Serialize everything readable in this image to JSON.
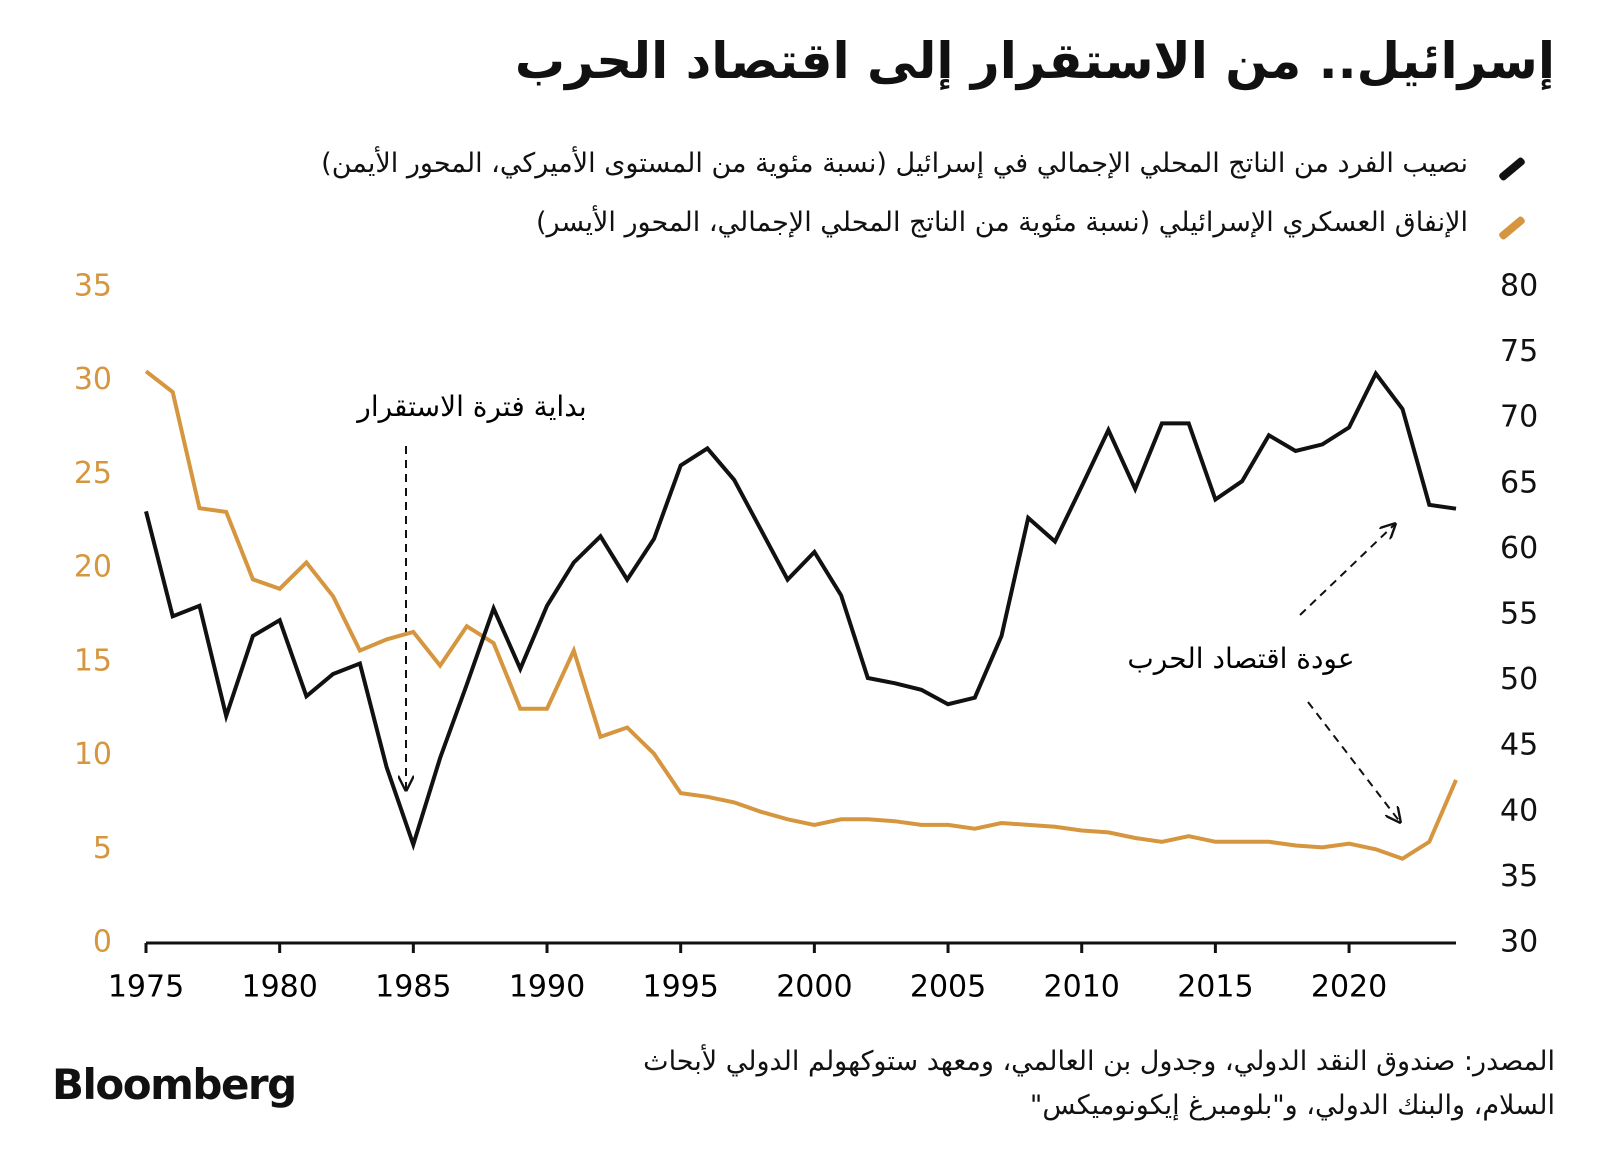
{
  "chart_data": {
    "type": "line",
    "title": "إسرائيل.. من الاستقرار إلى اقتصاد الحرب",
    "x": [
      1975,
      1976,
      1977,
      1978,
      1979,
      1980,
      1981,
      1982,
      1983,
      1984,
      1985,
      1986,
      1987,
      1988,
      1989,
      1990,
      1991,
      1992,
      1993,
      1994,
      1995,
      1996,
      1997,
      1998,
      1999,
      2000,
      2001,
      2002,
      2003,
      2004,
      2005,
      2006,
      2007,
      2008,
      2009,
      2010,
      2011,
      2012,
      2013,
      2014,
      2015,
      2016,
      2017,
      2018,
      2019,
      2020,
      2021,
      2022,
      2023,
      2024
    ],
    "series": [
      {
        "name": "نصيب الفرد من الناتج المحلي الإجمالي في إسرائيل (نسبة مئوية من المستوى الأميركي، المحور الأيمن)",
        "color": "#111111",
        "axis": "y2",
        "values": [
          62.9,
          54.9,
          55.7,
          47.3,
          53.4,
          54.6,
          48.8,
          50.5,
          51.3,
          43.4,
          37.5,
          44.1,
          49.7,
          55.5,
          50.9,
          55.7,
          59.0,
          61.0,
          57.7,
          60.8,
          66.4,
          67.7,
          65.3,
          61.5,
          57.7,
          59.8,
          56.5,
          50.2,
          49.8,
          49.3,
          48.2,
          48.7,
          53.4,
          62.4,
          60.6,
          64.8,
          69.1,
          64.6,
          69.6,
          69.6,
          63.8,
          65.2,
          68.7,
          67.5,
          68.0,
          69.3,
          73.4,
          70.7,
          63.4,
          63.1
        ]
      },
      {
        "name": "الإنفاق العسكري الإسرائيلي (نسبة مئوية من الناتج المحلي الإجمالي، المحور الأيسر)",
        "color": "#d6963f",
        "values": [
          30.5,
          29.4,
          23.2,
          23.0,
          19.4,
          18.9,
          20.3,
          18.5,
          15.6,
          16.2,
          16.6,
          14.8,
          16.9,
          16.0,
          12.5,
          12.5,
          15.6,
          11.0,
          11.5,
          10.1,
          8.0,
          7.8,
          7.5,
          7.0,
          6.6,
          6.3,
          6.6,
          6.6,
          6.5,
          6.3,
          6.3,
          6.1,
          6.4,
          6.3,
          6.2,
          6.0,
          5.9,
          5.6,
          5.4,
          5.7,
          5.4,
          5.4,
          5.4,
          5.2,
          5.1,
          5.3,
          5.0,
          4.5,
          5.4,
          8.7
        ]
      }
    ],
    "xlim": [
      1975,
      2024
    ],
    "xticks": [
      1975,
      1980,
      1985,
      1990,
      1995,
      2000,
      2005,
      2010,
      2015,
      2020
    ],
    "ylim": [
      0,
      35
    ],
    "yticks": [
      0,
      5,
      10,
      15,
      20,
      25,
      30,
      35
    ],
    "y2lim": [
      30,
      80
    ],
    "y2ticks": [
      30,
      35,
      40,
      45,
      50,
      55,
      60,
      65,
      70,
      75,
      80
    ],
    "annotations": [
      "بداية فترة الاستقرار",
      "عودة اقتصاد الحرب"
    ],
    "source": "المصدر: صندوق النقد الدولي، وجدول بن العالمي، ومعهد ستوكهولم الدولي لأبحاث السلام، والبنك الدولي، و\"بلومبرغ إيكونوميكس\"",
    "logo": "Bloomberg"
  }
}
